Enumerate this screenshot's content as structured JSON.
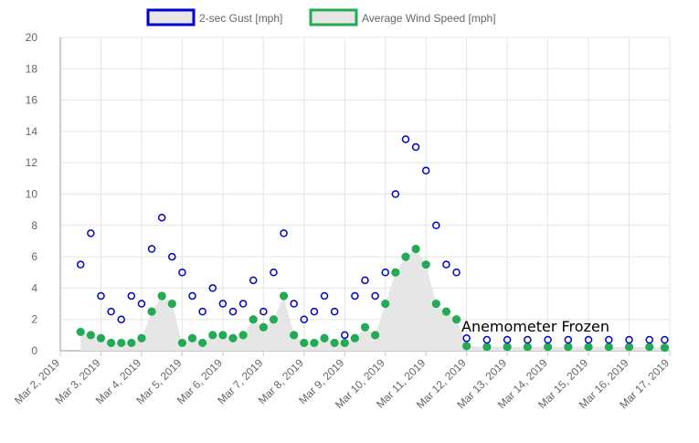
{
  "chart_data": {
    "type": "line",
    "title": "",
    "xlabel": "",
    "ylabel": "",
    "ylim": [
      0,
      20
    ],
    "yticks": [
      0,
      2,
      4,
      6,
      8,
      10,
      12,
      14,
      16,
      18,
      20
    ],
    "xlim": [
      "2019-03-02",
      "2019-03-17"
    ],
    "xtick_labels": [
      "Mar 2, 2019",
      "Mar 3, 2019",
      "Mar 4, 2019",
      "Mar 5, 2019",
      "Mar 6, 2019",
      "Mar 7, 2019",
      "Mar 8, 2019",
      "Mar 9, 2019",
      "Mar 10, 2019",
      "Mar 11, 2019",
      "Mar 12, 2019",
      "Mar 13, 2019",
      "Mar 14, 2019",
      "Mar 15, 2019",
      "Mar 16, 2019",
      "Mar 17, 2019"
    ],
    "grid": true,
    "legend_position": "top",
    "annotation": "Anemometer Frozen",
    "x": [
      "2019-03-02 12:00",
      "2019-03-02 18:00",
      "2019-03-03 00:00",
      "2019-03-03 06:00",
      "2019-03-03 12:00",
      "2019-03-03 18:00",
      "2019-03-04 00:00",
      "2019-03-04 06:00",
      "2019-03-04 12:00",
      "2019-03-04 18:00",
      "2019-03-05 00:00",
      "2019-03-05 06:00",
      "2019-03-05 12:00",
      "2019-03-05 18:00",
      "2019-03-06 00:00",
      "2019-03-06 06:00",
      "2019-03-06 12:00",
      "2019-03-06 18:00",
      "2019-03-07 00:00",
      "2019-03-07 06:00",
      "2019-03-07 12:00",
      "2019-03-07 18:00",
      "2019-03-08 00:00",
      "2019-03-08 06:00",
      "2019-03-08 12:00",
      "2019-03-08 18:00",
      "2019-03-09 00:00",
      "2019-03-09 06:00",
      "2019-03-09 12:00",
      "2019-03-09 18:00",
      "2019-03-10 00:00",
      "2019-03-10 06:00",
      "2019-03-10 12:00",
      "2019-03-10 18:00",
      "2019-03-11 00:00",
      "2019-03-11 06:00",
      "2019-03-11 12:00",
      "2019-03-11 18:00",
      "2019-03-12 00:00",
      "2019-03-12 12:00",
      "2019-03-13 00:00",
      "2019-03-13 12:00",
      "2019-03-14 00:00",
      "2019-03-14 12:00",
      "2019-03-15 00:00",
      "2019-03-15 12:00",
      "2019-03-16 00:00",
      "2019-03-16 12:00",
      "2019-03-16 21:00"
    ],
    "series": [
      {
        "name": "2-sec Gust [mph]",
        "color": "#0000cc",
        "values": [
          5.5,
          7.5,
          3.5,
          2.5,
          2.0,
          3.5,
          3.0,
          6.5,
          8.5,
          6.0,
          5.0,
          3.5,
          2.5,
          4.0,
          3.0,
          2.5,
          3.0,
          4.5,
          2.5,
          5.0,
          7.5,
          3.0,
          2.0,
          2.5,
          3.5,
          2.5,
          1.0,
          3.5,
          4.5,
          3.5,
          5.0,
          10.0,
          13.5,
          13.0,
          11.5,
          8.0,
          5.5,
          5.0,
          0.8,
          0.7,
          0.7,
          0.7,
          0.7,
          0.7,
          0.7,
          0.7,
          0.7,
          0.7,
          0.7
        ]
      },
      {
        "name": "Average Wind Speed [mph]",
        "color": "#22aa55",
        "values": [
          1.2,
          1.0,
          0.8,
          0.5,
          0.5,
          0.5,
          0.8,
          2.5,
          3.5,
          3.0,
          0.5,
          0.8,
          0.5,
          1.0,
          1.0,
          0.8,
          1.0,
          2.0,
          1.5,
          2.0,
          3.5,
          1.0,
          0.5,
          0.5,
          0.8,
          0.5,
          0.5,
          0.8,
          1.5,
          1.0,
          3.0,
          5.0,
          6.0,
          6.5,
          5.5,
          3.0,
          2.5,
          2.0,
          0.3,
          0.25,
          0.25,
          0.25,
          0.25,
          0.25,
          0.25,
          0.25,
          0.25,
          0.25,
          0.2
        ]
      }
    ]
  },
  "legend": {
    "items": [
      {
        "label": "2-sec Gust [mph]",
        "color": "#0000cc"
      },
      {
        "label": "Average Wind Speed [mph]",
        "color": "#22aa55"
      }
    ]
  }
}
